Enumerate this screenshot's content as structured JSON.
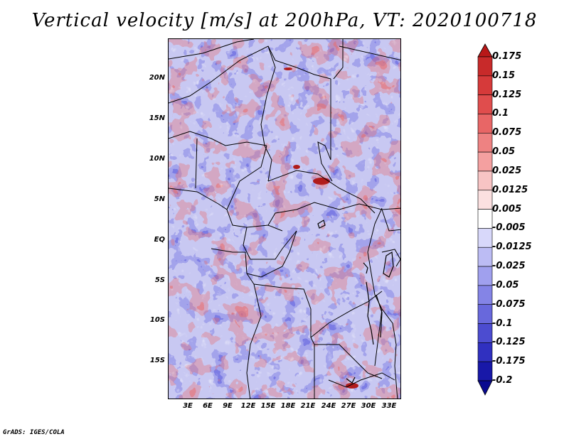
{
  "title": "Vertical velocity [m/s] at 200hPa, VT: 2020100718",
  "y_axis_labels": [
    "20N",
    "15N",
    "10N",
    "5N",
    "EQ",
    "5S",
    "10S",
    "15S"
  ],
  "x_axis_labels": [
    "3E",
    "6E",
    "9E",
    "12E",
    "15E",
    "18E",
    "21E",
    "24E",
    "27E",
    "30E",
    "33E"
  ],
  "colorbar": {
    "levels": [
      "0.175",
      "0.15",
      "0.125",
      "0.1",
      "0.075",
      "0.05",
      "0.025",
      "0.0125",
      "0.005",
      "-0.005",
      "-0.0125",
      "-0.025",
      "-0.05",
      "-0.075",
      "-0.1",
      "-0.125",
      "-0.175",
      "-0.2"
    ],
    "colors": [
      "#b81818",
      "#c82a2a",
      "#d63a3a",
      "#e04d4d",
      "#e86666",
      "#ee8282",
      "#f4a0a0",
      "#f8c4c4",
      "#fbe0e0",
      "#ffffff",
      "#d8d8fa",
      "#bcbcf4",
      "#a0a0ee",
      "#8484e6",
      "#6868dc",
      "#4c4cd0",
      "#3030c0",
      "#1818a8",
      "#0a0a90"
    ]
  },
  "credit": "GrADS: IGES/COLA"
}
